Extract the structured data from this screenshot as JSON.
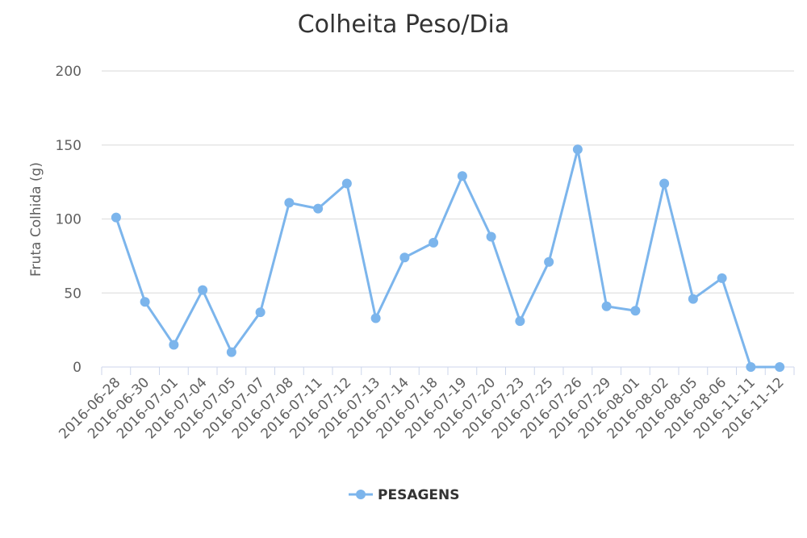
{
  "chart_data": {
    "type": "line",
    "title": "Colheita Peso/Dia",
    "ylabel": "Fruta Colhida (g)",
    "xlabel": "",
    "ylim": [
      0,
      200
    ],
    "yticks": [
      0,
      50,
      100,
      150,
      200
    ],
    "grid": true,
    "legend_position": "bottom-center",
    "categories": [
      "2016-06-28",
      "2016-06-30",
      "2016-07-01",
      "2016-07-04",
      "2016-07-05",
      "2016-07-07",
      "2016-07-08",
      "2016-07-11",
      "2016-07-12",
      "2016-07-13",
      "2016-07-14",
      "2016-07-18",
      "2016-07-19",
      "2016-07-20",
      "2016-07-23",
      "2016-07-25",
      "2016-07-26",
      "2016-07-29",
      "2016-08-01",
      "2016-08-02",
      "2016-08-05",
      "2016-08-06",
      "2016-11-11",
      "2016-11-12"
    ],
    "series": [
      {
        "name": "PESAGENS",
        "color": "#7cb5ec",
        "values": [
          101,
          44,
          15,
          52,
          10,
          37,
          111,
          107,
          124,
          33,
          74,
          84,
          129,
          88,
          31,
          71,
          147,
          41,
          38,
          124,
          46,
          60,
          0,
          0
        ]
      }
    ]
  }
}
